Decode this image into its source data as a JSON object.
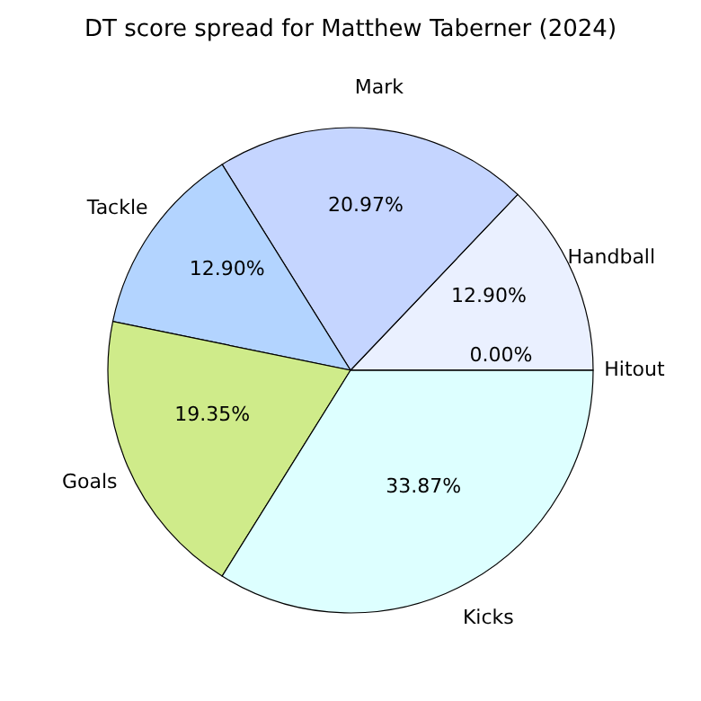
{
  "chart_data": {
    "type": "pie",
    "title": "DT score spread for Matthew Taberner (2024)",
    "categories": [
      "Handball",
      "Mark",
      "Tackle",
      "Goals",
      "Kicks",
      "Hitout"
    ],
    "values": [
      12.9,
      20.97,
      12.9,
      19.35,
      33.87,
      0.0
    ],
    "colors": [
      "#eaf0ff",
      "#c5d5ff",
      "#b3d4ff",
      "#cfeb8a",
      "#ddffff",
      "#d0d0d0"
    ],
    "value_labels": [
      "12.90%",
      "20.97%",
      "12.90%",
      "19.35%",
      "33.87%",
      "0.00%"
    ],
    "legend": false
  }
}
